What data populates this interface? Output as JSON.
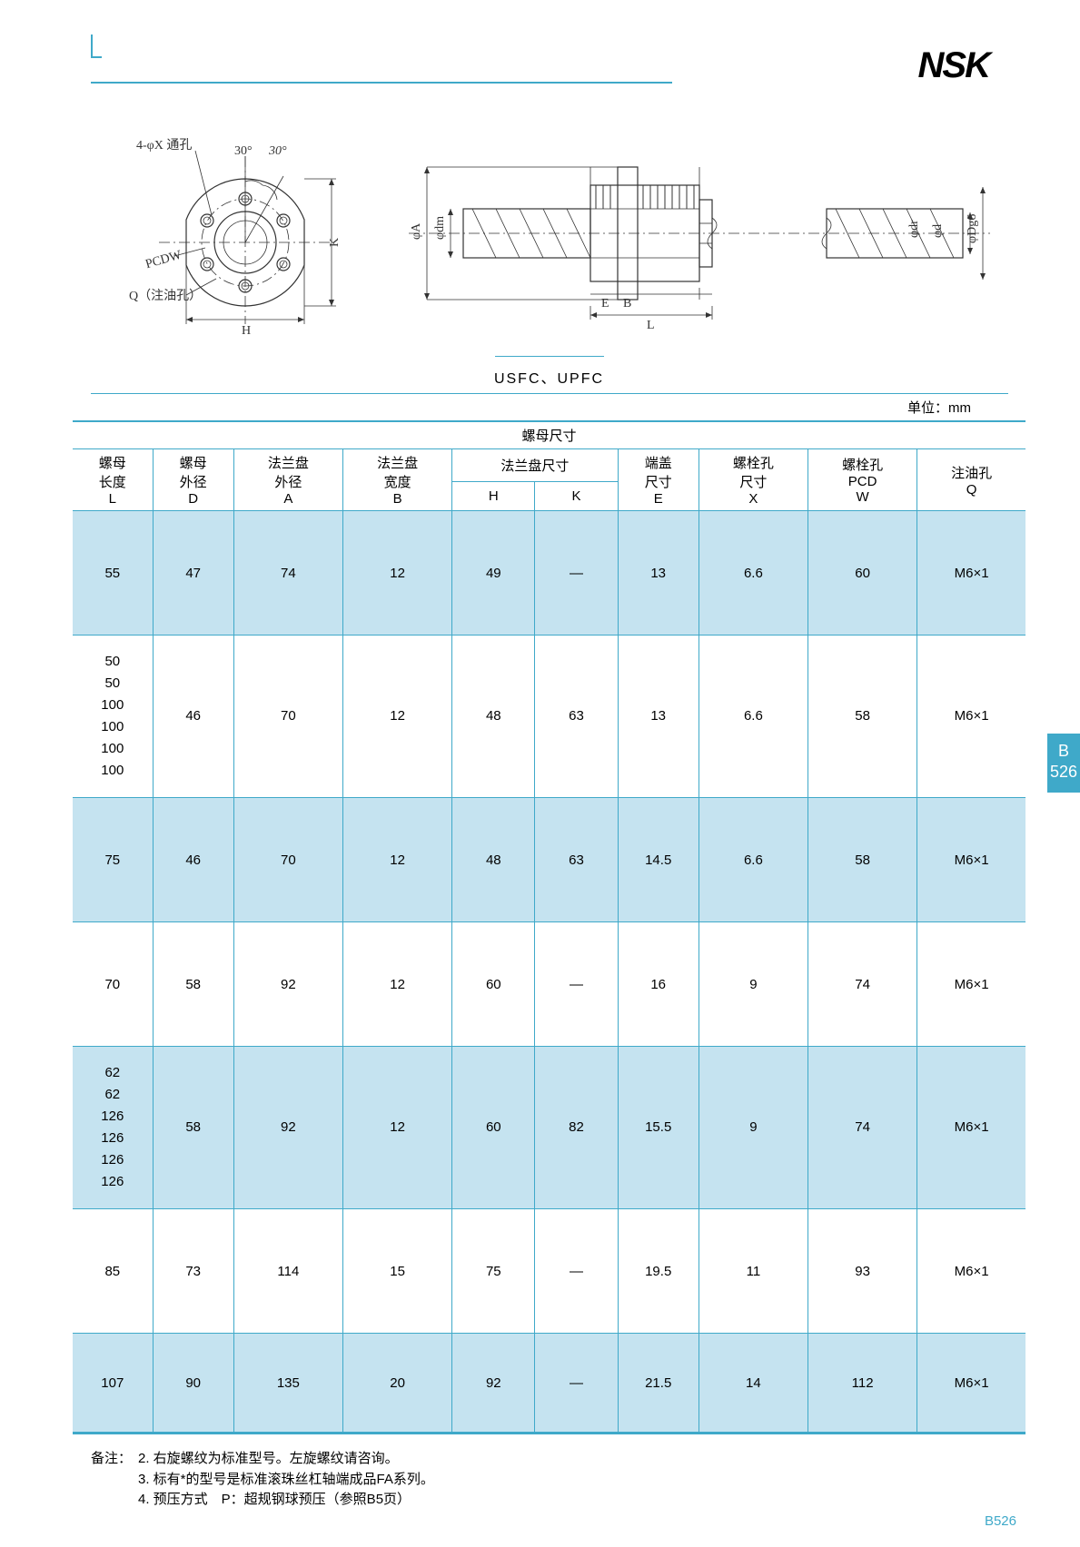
{
  "logo": "NSK",
  "model_label": "USFC、UPFC",
  "units_label": "单位：mm",
  "diagram_labels": {
    "through_hole": "4-φX 通孔",
    "angle1": "30°",
    "angle2": "30°",
    "pcd": "PCDW",
    "oil_hole": "Q（注油孔）",
    "H": "H",
    "K": "K",
    "phiA": "φA",
    "phidm": "φdm",
    "phidr": "φdr",
    "phid": "φd",
    "phiDg6": "φDg6",
    "E": "E",
    "B": "B",
    "L": "L"
  },
  "table": {
    "group_header": "螺母尺寸",
    "sub_group": "法兰盘尺寸",
    "columns": [
      {
        "l1": "螺母",
        "l2": "长度",
        "sym": "L"
      },
      {
        "l1": "螺母",
        "l2": "外径",
        "sym": "D"
      },
      {
        "l1": "法兰盘",
        "l2": "外径",
        "sym": "A"
      },
      {
        "l1": "法兰盘",
        "l2": "宽度",
        "sym": "B"
      },
      {
        "l1": "",
        "l2": "",
        "sym": "H"
      },
      {
        "l1": "",
        "l2": "",
        "sym": "K"
      },
      {
        "l1": "端盖",
        "l2": "尺寸",
        "sym": "E"
      },
      {
        "l1": "螺栓孔",
        "l2": "尺寸",
        "sym": "X"
      },
      {
        "l1": "螺栓孔",
        "l2": "PCD",
        "sym": "W"
      },
      {
        "l1": "注油孔",
        "l2": "",
        "sym": "Q"
      }
    ],
    "rows": [
      {
        "band": true,
        "cls": "tall",
        "cells": [
          "55",
          "47",
          "74",
          "12",
          "49",
          "—",
          "13",
          "6.6",
          "60",
          "M6×1"
        ]
      },
      {
        "band": false,
        "cls": "multiline",
        "cells": [
          "50\n50\n100\n100\n100\n100",
          "46",
          "70",
          "12",
          "48",
          "63",
          "13",
          "6.6",
          "58",
          "M6×1"
        ]
      },
      {
        "band": true,
        "cls": "tall",
        "cells": [
          "75",
          "46",
          "70",
          "12",
          "48",
          "63",
          "14.5",
          "6.6",
          "58",
          "M6×1"
        ]
      },
      {
        "band": false,
        "cls": "tall",
        "cells": [
          "70",
          "58",
          "92",
          "12",
          "60",
          "—",
          "16",
          "9",
          "74",
          "M6×1"
        ]
      },
      {
        "band": true,
        "cls": "multiline",
        "cells": [
          "62\n62\n126\n126\n126\n126",
          "58",
          "92",
          "12",
          "60",
          "82",
          "15.5",
          "9",
          "74",
          "M6×1"
        ]
      },
      {
        "band": false,
        "cls": "tall",
        "cells": [
          "85",
          "73",
          "114",
          "15",
          "75",
          "—",
          "19.5",
          "11",
          "93",
          "M6×1"
        ]
      },
      {
        "band": true,
        "cls": "short",
        "cells": [
          "107",
          "90",
          "135",
          "20",
          "92",
          "—",
          "21.5",
          "14",
          "112",
          "M6×1"
        ]
      }
    ]
  },
  "notes": {
    "label": "备注：",
    "items": [
      "2. 右旋螺纹为标准型号。左旋螺纹请咨询。",
      "3. 标有*的型号是标准滚珠丝杠轴端成品FA系列。",
      "4. 预压方式　P：超规钢球预压（参照B5页）"
    ]
  },
  "side_tab": {
    "line1": "B",
    "line2": "526"
  },
  "page_number": "B526",
  "colors": {
    "brand_blue": "#3fa9c9",
    "band_fill": "#c5e3f0"
  }
}
